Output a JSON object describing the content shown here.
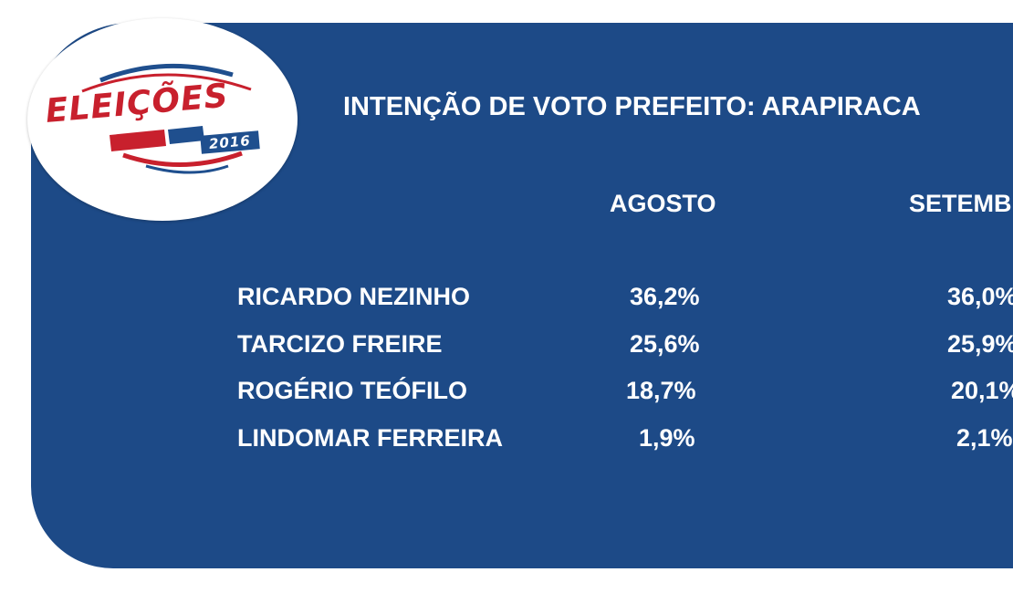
{
  "logo": {
    "word": "ELEIÇÕES",
    "year": "2016"
  },
  "title": "INTENÇÃO DE VOTO PREFEITO: ARAPIRACA",
  "columns": [
    "AGOSTO",
    "SETEMB"
  ],
  "rows": [
    {
      "name": "RICARDO NEZINHO",
      "agosto": "36,2%",
      "setembro": "36,0%"
    },
    {
      "name": "TARCIZO FREIRE",
      "agosto": "25,6%",
      "setembro": "25,9%"
    },
    {
      "name": "ROGÉRIO TEÓFILO",
      "agosto": "18,7%",
      "setembro": "20,1%"
    },
    {
      "name": "LINDOMAR FERREIRA",
      "agosto": "1,9%",
      "setembro": "2,1%"
    }
  ],
  "colors": {
    "panel": "#1d4a87",
    "logo_red": "#c8202d",
    "logo_blue": "#1f4f8e",
    "text": "#ffffff"
  }
}
